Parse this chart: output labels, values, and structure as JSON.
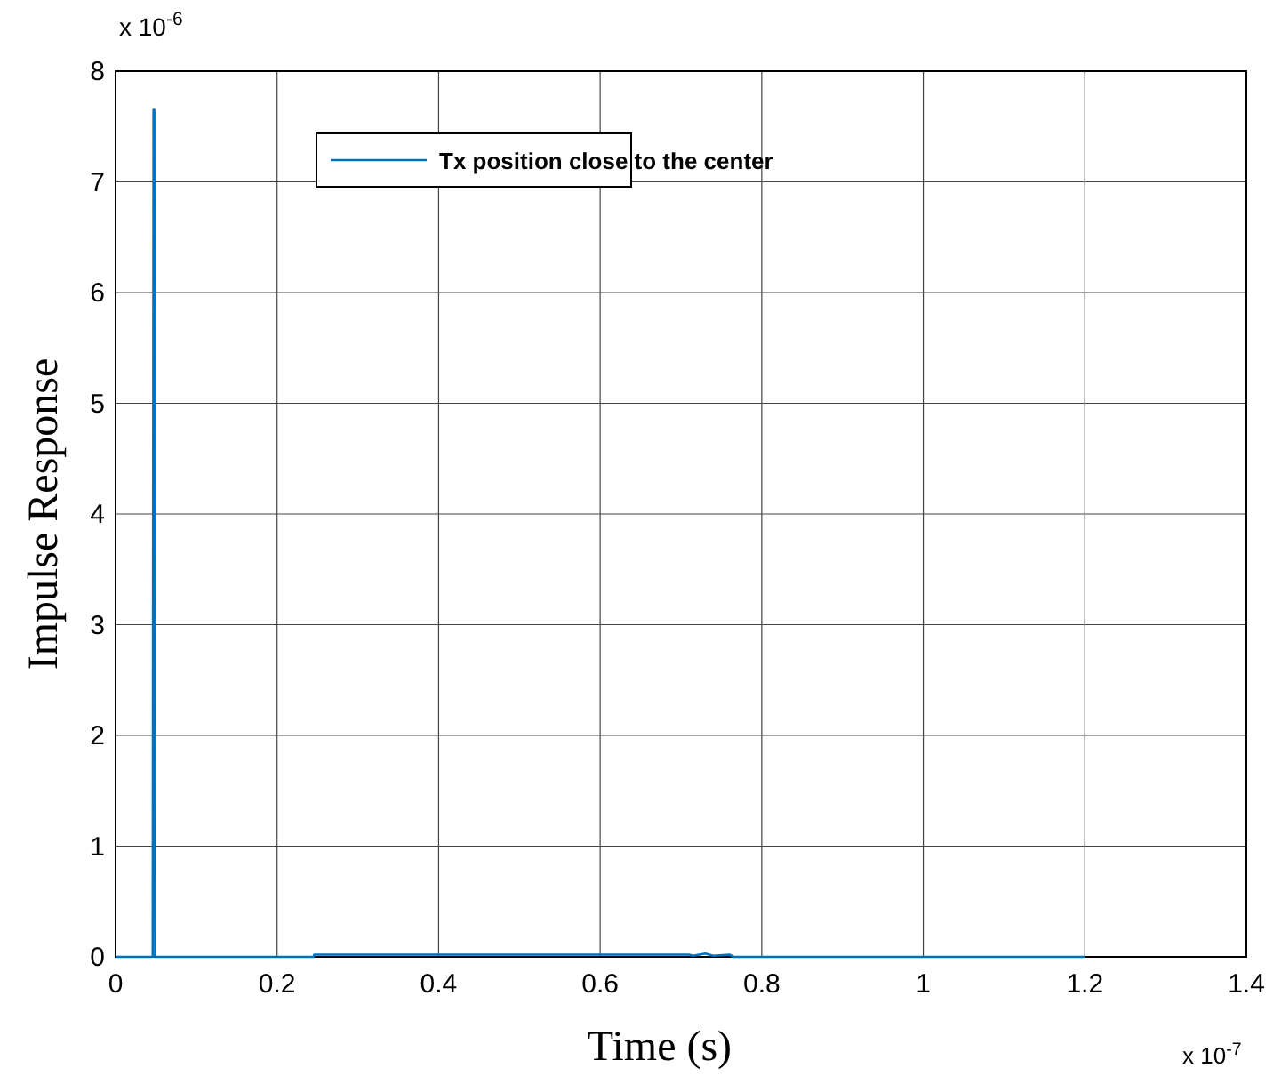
{
  "chart_data": {
    "type": "line",
    "xlabel": "Time (s)",
    "ylabel": "Impulse Response",
    "series": [
      {
        "name": "Tx position close to the center",
        "color": "#0072bd",
        "x": [
          0,
          0.046,
          0.047,
          0.048,
          0.049,
          0.245,
          0.246,
          0.71,
          0.715,
          0.73,
          0.74,
          0.76,
          0.765,
          0.77,
          1.2
        ],
        "values": [
          0,
          0,
          7.65,
          7.65,
          0,
          0,
          0.02,
          0.02,
          0.01,
          0.03,
          0.01,
          0.02,
          0,
          0,
          0
        ]
      }
    ],
    "xlim": [
      0,
      1.4
    ],
    "ylim": [
      0,
      8
    ],
    "xticks": [
      0,
      0.2,
      0.4,
      0.6,
      0.8,
      1,
      1.2,
      1.4
    ],
    "yticks": [
      0,
      1,
      2,
      3,
      4,
      5,
      6,
      7,
      8
    ],
    "annotations": [
      "x 10$^{-6}$",
      "x 10$^{-7}$"
    ],
    "grid": true,
    "legend": "top",
    "line_style": "solid",
    "marker": "none"
  }
}
